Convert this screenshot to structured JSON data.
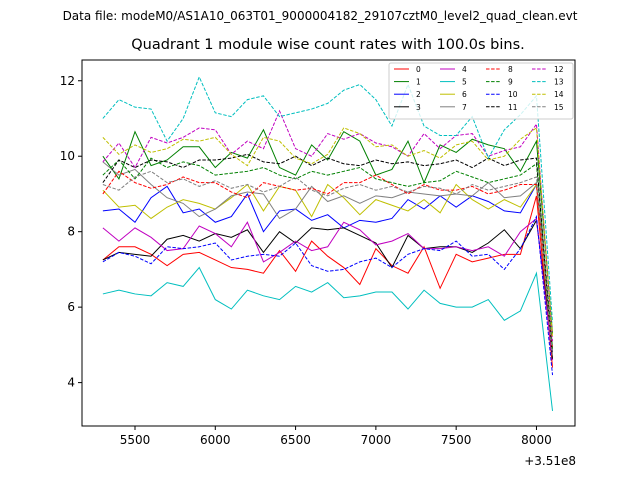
{
  "suptitle": "Data file: modeM0/AS1A10_063T01_9000004182_29107cztM0_level2_quad_clean.evt",
  "chart_data": {
    "type": "line",
    "title": "Quadrant 1 module wise count rates with 100.0s bins.",
    "xlabel": "",
    "ylabel": "",
    "x_offset_label": "+3.51e8",
    "xlim": [
      5170,
      8240
    ],
    "ylim": [
      2.85,
      12.55
    ],
    "x_ticks": [
      5500,
      6000,
      6500,
      7000,
      7500,
      8000
    ],
    "x_tick_labels": [
      "5500",
      "6000",
      "6500",
      "7000",
      "7500",
      "8000"
    ],
    "y_ticks": [
      4,
      6,
      8,
      10,
      12
    ],
    "y_tick_labels": [
      "4",
      "6",
      "8",
      "10",
      "12"
    ],
    "grid": false,
    "legend_position": "top-right",
    "x": [
      5300,
      5400,
      5500,
      5600,
      5700,
      5800,
      5900,
      6000,
      6100,
      6200,
      6300,
      6400,
      6500,
      6600,
      6700,
      6800,
      6900,
      7000,
      7100,
      7200,
      7300,
      7400,
      7500,
      7600,
      7700,
      7800,
      7900,
      8000,
      8100
    ],
    "series": [
      {
        "name": "0",
        "color": "#ff0000",
        "dash": "solid",
        "values": [
          7.25,
          7.6,
          7.6,
          7.4,
          7.1,
          7.4,
          7.45,
          7.25,
          7.05,
          7.0,
          6.9,
          7.5,
          6.95,
          7.75,
          7.35,
          7.05,
          6.6,
          7.55,
          7.1,
          6.9,
          7.6,
          6.5,
          7.4,
          7.2,
          7.3,
          7.4,
          7.4,
          8.95,
          4.4
        ]
      },
      {
        "name": "1",
        "color": "#008000",
        "dash": "solid",
        "values": [
          10.0,
          9.4,
          10.65,
          9.75,
          9.9,
          10.25,
          10.25,
          9.7,
          10.1,
          9.95,
          10.7,
          9.7,
          9.5,
          10.3,
          9.9,
          10.65,
          10.4,
          9.5,
          9.65,
          10.4,
          9.3,
          10.3,
          10.1,
          10.45,
          10.3,
          10.2,
          9.6,
          10.4,
          5.3
        ]
      },
      {
        "name": "2",
        "color": "#0000ff",
        "dash": "solid",
        "values": [
          8.55,
          8.6,
          8.25,
          8.9,
          9.2,
          8.5,
          8.6,
          8.25,
          8.4,
          9.0,
          8.0,
          8.55,
          8.6,
          8.3,
          8.45,
          8.1,
          8.3,
          8.25,
          8.35,
          8.85,
          8.6,
          8.95,
          8.65,
          8.95,
          8.8,
          8.55,
          8.5,
          9.25,
          4.8
        ]
      },
      {
        "name": "3",
        "color": "#000000",
        "dash": "solid",
        "values": [
          7.25,
          7.45,
          7.4,
          7.35,
          7.8,
          7.9,
          7.75,
          7.95,
          7.85,
          8.05,
          7.45,
          8.0,
          7.7,
          8.1,
          8.05,
          8.1,
          7.9,
          7.7,
          7.05,
          7.9,
          7.55,
          7.6,
          7.6,
          7.45,
          7.7,
          8.05,
          7.55,
          8.3,
          4.9
        ]
      },
      {
        "name": "4",
        "color": "#c000c0",
        "dash": "solid",
        "values": [
          8.1,
          7.75,
          8.1,
          7.85,
          7.5,
          7.55,
          8.15,
          7.95,
          7.6,
          8.25,
          7.2,
          7.45,
          7.75,
          7.5,
          7.6,
          8.25,
          8.05,
          7.65,
          7.75,
          7.95,
          7.55,
          7.55,
          7.6,
          7.5,
          7.6,
          7.35,
          8.0,
          8.35,
          4.6
        ]
      },
      {
        "name": "5",
        "color": "#00bfbf",
        "dash": "solid",
        "values": [
          6.35,
          6.45,
          6.35,
          6.3,
          6.65,
          6.55,
          7.05,
          6.2,
          5.95,
          6.45,
          6.3,
          6.2,
          6.55,
          6.4,
          6.65,
          6.25,
          6.3,
          6.4,
          6.4,
          5.95,
          6.45,
          6.1,
          6.0,
          6.0,
          6.2,
          5.65,
          5.9,
          6.9,
          3.25
        ]
      },
      {
        "name": "6",
        "color": "#bfbf00",
        "dash": "solid",
        "values": [
          9.1,
          8.65,
          8.7,
          8.35,
          8.65,
          8.85,
          8.75,
          8.6,
          8.9,
          9.25,
          8.55,
          9.2,
          9.1,
          8.4,
          9.25,
          8.9,
          8.45,
          8.85,
          8.7,
          8.55,
          8.85,
          8.5,
          9.25,
          8.85,
          8.6,
          8.85,
          8.65,
          9.25,
          4.7
        ]
      },
      {
        "name": "7",
        "color": "#808080",
        "dash": "solid",
        "values": [
          9.85,
          9.5,
          9.65,
          9.25,
          8.9,
          8.75,
          8.4,
          8.6,
          8.95,
          9.05,
          9.0,
          8.35,
          8.6,
          9.2,
          8.8,
          8.95,
          8.75,
          8.95,
          8.9,
          9.05,
          9.0,
          8.95,
          9.0,
          8.95,
          9.3,
          8.9,
          8.95,
          9.3,
          4.8
        ]
      },
      {
        "name": "8",
        "color": "#ff0000",
        "dash": "dashed",
        "values": [
          9.0,
          9.6,
          9.3,
          9.15,
          9.25,
          9.45,
          9.3,
          9.3,
          9.05,
          8.9,
          9.3,
          9.2,
          9.1,
          9.15,
          9.0,
          9.3,
          9.3,
          9.5,
          9.25,
          9.0,
          9.25,
          9.1,
          9.1,
          9.2,
          9.0,
          9.1,
          9.25,
          9.25,
          4.9
        ]
      },
      {
        "name": "9",
        "color": "#008000",
        "dash": "dashed",
        "values": [
          9.5,
          9.9,
          9.4,
          9.95,
          9.7,
          9.85,
          9.75,
          9.5,
          9.55,
          9.6,
          9.7,
          9.5,
          9.4,
          9.6,
          9.5,
          9.6,
          9.7,
          9.4,
          9.3,
          9.2,
          9.3,
          9.35,
          9.6,
          9.45,
          9.3,
          9.4,
          9.5,
          9.8,
          4.9
        ]
      },
      {
        "name": "10",
        "color": "#0000ff",
        "dash": "dashed",
        "values": [
          7.2,
          7.45,
          7.35,
          7.15,
          7.6,
          7.55,
          7.6,
          7.7,
          7.25,
          7.35,
          7.4,
          7.35,
          7.7,
          7.1,
          6.95,
          7.0,
          7.2,
          7.3,
          7.05,
          7.4,
          7.55,
          7.5,
          7.75,
          7.35,
          7.4,
          7.0,
          7.55,
          8.4,
          4.2
        ]
      },
      {
        "name": "11",
        "color": "#000000",
        "dash": "dashed",
        "values": [
          9.3,
          9.9,
          9.7,
          9.9,
          9.85,
          9.7,
          9.9,
          9.9,
          9.95,
          10.05,
          9.85,
          9.8,
          10.0,
          9.75,
          9.95,
          9.8,
          9.75,
          9.9,
          9.8,
          9.85,
          9.75,
          9.8,
          9.9,
          9.7,
          9.95,
          9.75,
          9.9,
          9.95,
          4.6
        ]
      },
      {
        "name": "12",
        "color": "#c000c0",
        "dash": "dashed",
        "values": [
          9.85,
          10.35,
          9.7,
          10.5,
          10.35,
          10.5,
          10.75,
          10.7,
          10.05,
          10.4,
          10.2,
          11.2,
          10.2,
          10.0,
          10.6,
          10.45,
          10.6,
          10.35,
          10.25,
          10.0,
          10.6,
          10.2,
          10.55,
          10.6,
          10.0,
          10.15,
          10.25,
          10.85,
          5.1
        ]
      },
      {
        "name": "13",
        "color": "#00bfbf",
        "dash": "dashed",
        "values": [
          11.0,
          11.5,
          11.3,
          11.25,
          10.4,
          11.0,
          12.1,
          11.15,
          11.05,
          11.5,
          11.6,
          11.05,
          11.15,
          11.25,
          11.4,
          11.75,
          11.9,
          11.5,
          10.8,
          11.9,
          10.8,
          10.55,
          10.55,
          11.05,
          9.95,
          10.7,
          11.1,
          11.6,
          5.6
        ]
      },
      {
        "name": "14",
        "color": "#bfbf00",
        "dash": "dashed",
        "values": [
          10.5,
          10.05,
          10.3,
          10.1,
          10.2,
          10.45,
          10.4,
          10.5,
          10.05,
          9.75,
          10.5,
          10.4,
          9.95,
          9.8,
          10.05,
          10.75,
          10.6,
          10.25,
          10.3,
          10.0,
          10.15,
          9.95,
          10.3,
          10.4,
          9.9,
          10.0,
          10.45,
          10.75,
          5.2
        ]
      },
      {
        "name": "15",
        "color": "#808080",
        "dash": "dashed",
        "values": [
          9.25,
          9.1,
          9.45,
          9.6,
          9.3,
          9.4,
          9.2,
          9.35,
          9.15,
          9.25,
          9.05,
          9.2,
          9.45,
          9.1,
          8.95,
          9.15,
          9.25,
          9.1,
          9.2,
          9.05,
          9.2,
          9.15,
          9.0,
          9.25,
          9.1,
          9.2,
          9.3,
          9.45,
          4.7
        ]
      }
    ]
  }
}
